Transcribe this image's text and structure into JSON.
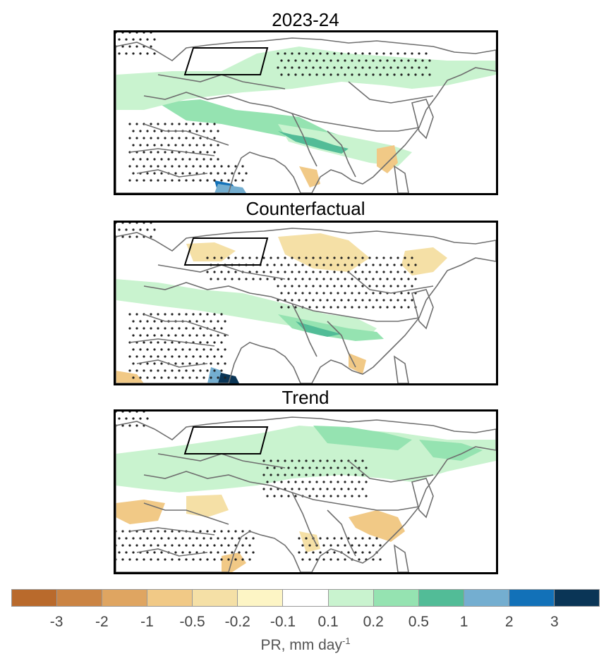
{
  "panels": [
    {
      "title": "2023-24",
      "variant": "obs"
    },
    {
      "title": "Counterfactual",
      "variant": "cf"
    },
    {
      "title": "Trend",
      "variant": "trend"
    }
  ],
  "colorbar": {
    "colors": [
      "#b96a2c",
      "#cb8443",
      "#dfa561",
      "#f1c986",
      "#f5e0a6",
      "#fdf5c5",
      "#ffffff",
      "#c9f3cf",
      "#95e3b1",
      "#52bc97",
      "#74aed0",
      "#1271b8",
      "#0a3556"
    ],
    "tick_labels": [
      "-3",
      "-2",
      "-1",
      "-0.5",
      "-0.2",
      "-0.1",
      "0.1",
      "0.2",
      "0.5",
      "1",
      "2",
      "3"
    ],
    "label_main": "PR, mm day",
    "label_sup": "-1"
  }
}
